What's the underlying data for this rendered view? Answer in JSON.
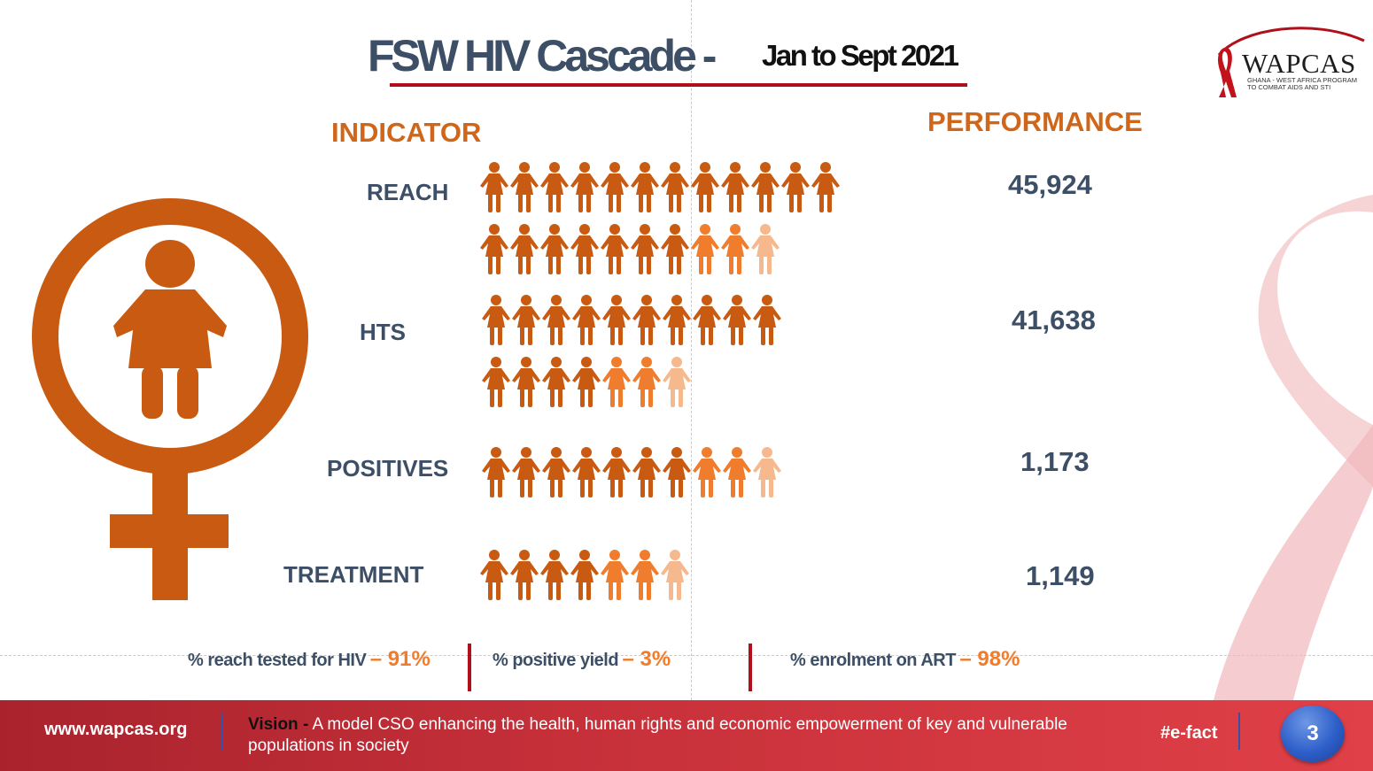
{
  "title": {
    "main": "FSW HIV Cascade -",
    "period": "Jan to Sept 2021"
  },
  "logo": {
    "name": "WAPCAS",
    "tagline_1": "GHANA - WEST AFRICA PROGRAM",
    "tagline_2": "TO COMBAT AIDS AND STI"
  },
  "headers": {
    "indicator": "INDICATOR",
    "performance": "PERFORMANCE"
  },
  "indicators": [
    {
      "label": "REACH",
      "value": "45,924"
    },
    {
      "label": "HTS",
      "value": "41,638"
    },
    {
      "label": "POSITIVES",
      "value": "1,173"
    },
    {
      "label": "TREATMENT",
      "value": "1,149"
    }
  ],
  "stats": [
    {
      "label": "% reach tested for HIV",
      "value": "– 91%"
    },
    {
      "label": "% positive yield",
      "value": "– 3%"
    },
    {
      "label": "% enrolment on ART",
      "value": "– 98%"
    }
  ],
  "footer": {
    "url": "www.wapcas.org",
    "vision_label": "Vision -",
    "vision_text": "A model CSO enhancing the health, human rights and economic empowerment of key and vulnerable populations in society",
    "hashtag": "#e-fact",
    "page_number": "3"
  },
  "colors": {
    "accent_orange": "#d0661a",
    "figure_orange": "#c85a12",
    "light_orange": "#ef7d2d",
    "navy_text": "#3d4f66",
    "brand_red": "#b0101a"
  },
  "icons": [
    "female-symbol-icon",
    "person-icon",
    "red-ribbon-icon"
  ]
}
